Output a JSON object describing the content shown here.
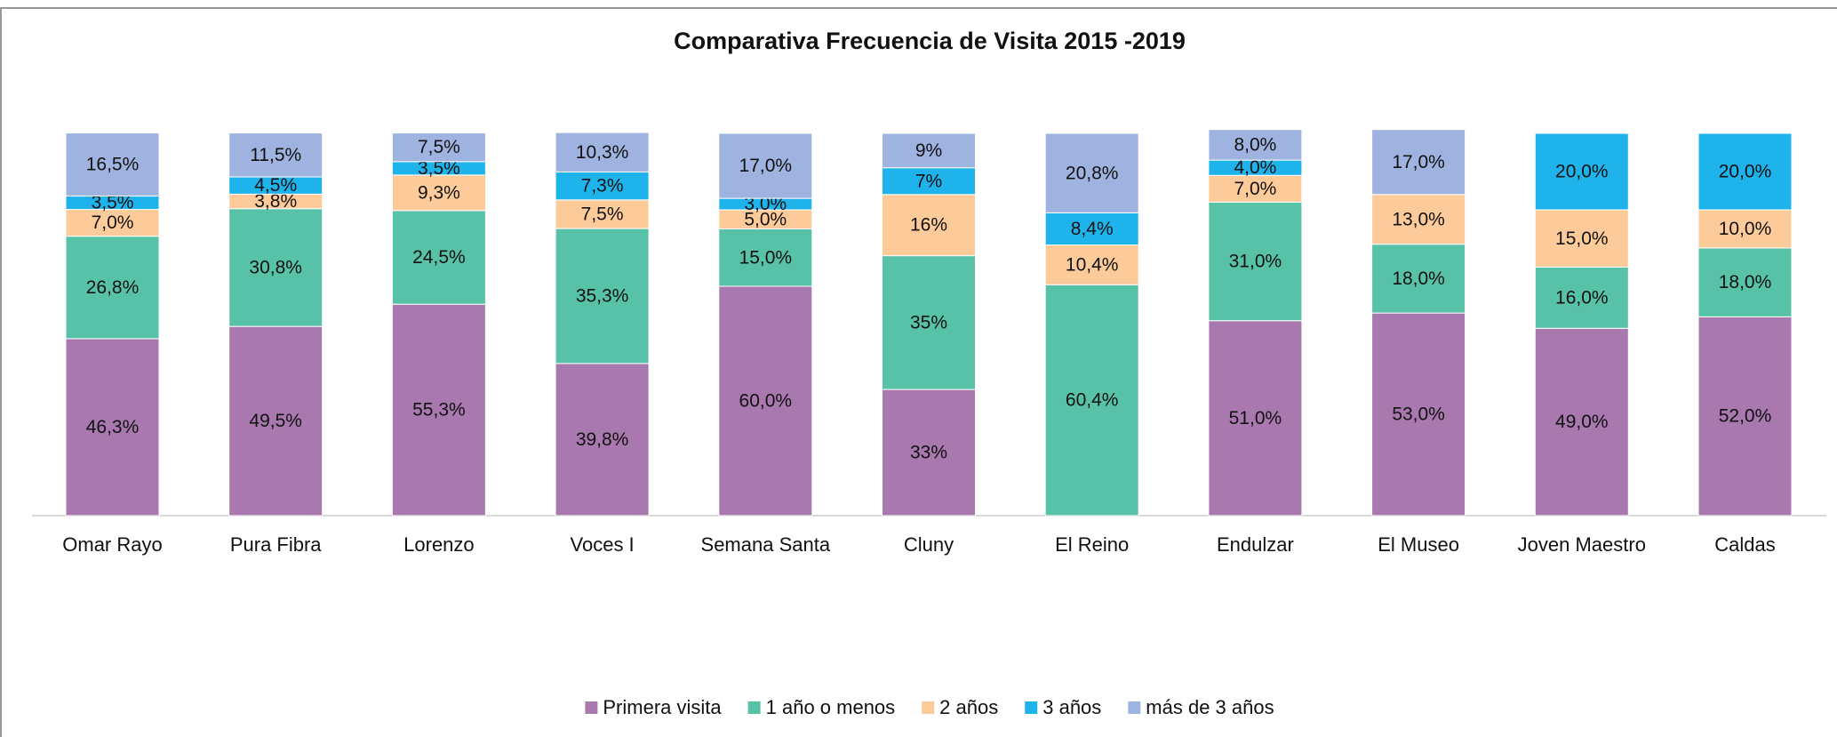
{
  "chart_data": {
    "type": "stacked_bar",
    "title": "Comparativa Frecuencia de Visita 2015 -2019",
    "categories": [
      "Omar Rayo",
      "Pura Fibra",
      "Lorenzo",
      "Voces I",
      "Semana Santa",
      "Cluny",
      "El Reino",
      "Endulzar",
      "El Museo",
      "Joven Maestro",
      "Caldas"
    ],
    "series": [
      {
        "name": "Primera visita",
        "color": "#a878ae",
        "values": [
          46.3,
          49.5,
          55.3,
          39.8,
          60.0,
          33,
          null,
          51.0,
          53.0,
          49.0,
          52.0
        ],
        "value_labels": [
          "46,3%",
          "49,5%",
          "55,3%",
          "39,8%",
          "60,0%",
          "33%",
          null,
          "51,0%",
          "53,0%",
          "49,0%",
          "52,0%"
        ]
      },
      {
        "name": "1 año o menos",
        "color": "#58c2a8",
        "values": [
          26.8,
          30.8,
          24.5,
          35.3,
          15.0,
          35,
          60.4,
          31.0,
          18.0,
          16.0,
          18.0
        ],
        "value_labels": [
          "26,8%",
          "30,8%",
          "24,5%",
          "35,3%",
          "15,0%",
          "35%",
          "60,4%",
          "31,0%",
          "18,0%",
          "16,0%",
          "18,0%"
        ]
      },
      {
        "name": "2 años",
        "color": "#fdcb9a",
        "values": [
          7.0,
          3.8,
          9.3,
          7.5,
          5.0,
          16,
          10.4,
          7.0,
          13.0,
          15.0,
          10.0
        ],
        "value_labels": [
          "7,0%",
          "3,8%",
          "9,3%",
          "7,5%",
          "5,0%",
          "16%",
          "10,4%",
          "7,0%",
          "13,0%",
          "15,0%",
          "10,0%"
        ]
      },
      {
        "name": "3 años",
        "color": "#1fb3ec",
        "values": [
          3.5,
          4.5,
          3.5,
          7.3,
          3.0,
          7,
          8.4,
          4.0,
          null,
          20.0,
          20.0
        ],
        "value_labels": [
          "3,5%",
          "4,5%",
          "3,5%",
          "7,3%",
          "3,0%",
          "7%",
          "8,4%",
          "4,0%",
          null,
          "20,0%",
          "20,0%"
        ]
      },
      {
        "name": "más de 3 años",
        "color": "#9fb3e0",
        "values": [
          16.5,
          11.5,
          7.5,
          10.3,
          17.0,
          9,
          20.8,
          8.0,
          17.0,
          null,
          null
        ],
        "value_labels": [
          "16,5%",
          "11,5%",
          "7,5%",
          "10,3%",
          "17,0%",
          "9%",
          "20,8%",
          "8,0%",
          "17,0%",
          null,
          null
        ]
      }
    ],
    "legend": "bottom"
  }
}
